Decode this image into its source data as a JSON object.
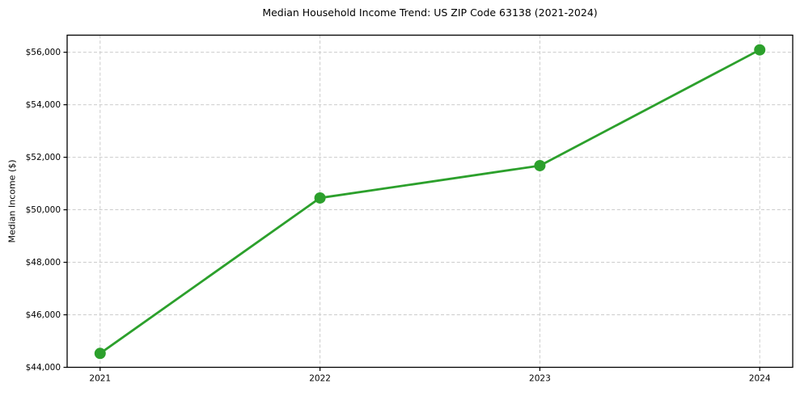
{
  "chart_data": {
    "type": "line",
    "title": "Median Household Income Trend: US ZIP Code 63138 (2021-2024)",
    "xlabel": "",
    "ylabel": "Median Income ($)",
    "categories": [
      2021,
      2022,
      2023,
      2024
    ],
    "x_tick_labels": [
      "2021",
      "2022",
      "2023",
      "2024"
    ],
    "series": [
      {
        "name": "Median Income ($)",
        "values": [
          44530,
          50450,
          51680,
          56090
        ],
        "color": "#2ca02c",
        "marker": "circle"
      }
    ],
    "y_ticks": [
      44000,
      46000,
      48000,
      50000,
      52000,
      54000,
      56000
    ],
    "y_tick_labels": [
      "$44,000",
      "$46,000",
      "$48,000",
      "$50,000",
      "$52,000",
      "$54,000",
      "$56,000"
    ],
    "xlim": [
      2020.85,
      2024.15
    ],
    "ylim": [
      44000,
      56650
    ],
    "grid": "both-dashed",
    "legend": "none",
    "colors": {
      "line": "#2ca02c",
      "grid": "#cccccc",
      "axis": "#000000",
      "text": "#000000",
      "background": "#ffffff"
    }
  }
}
